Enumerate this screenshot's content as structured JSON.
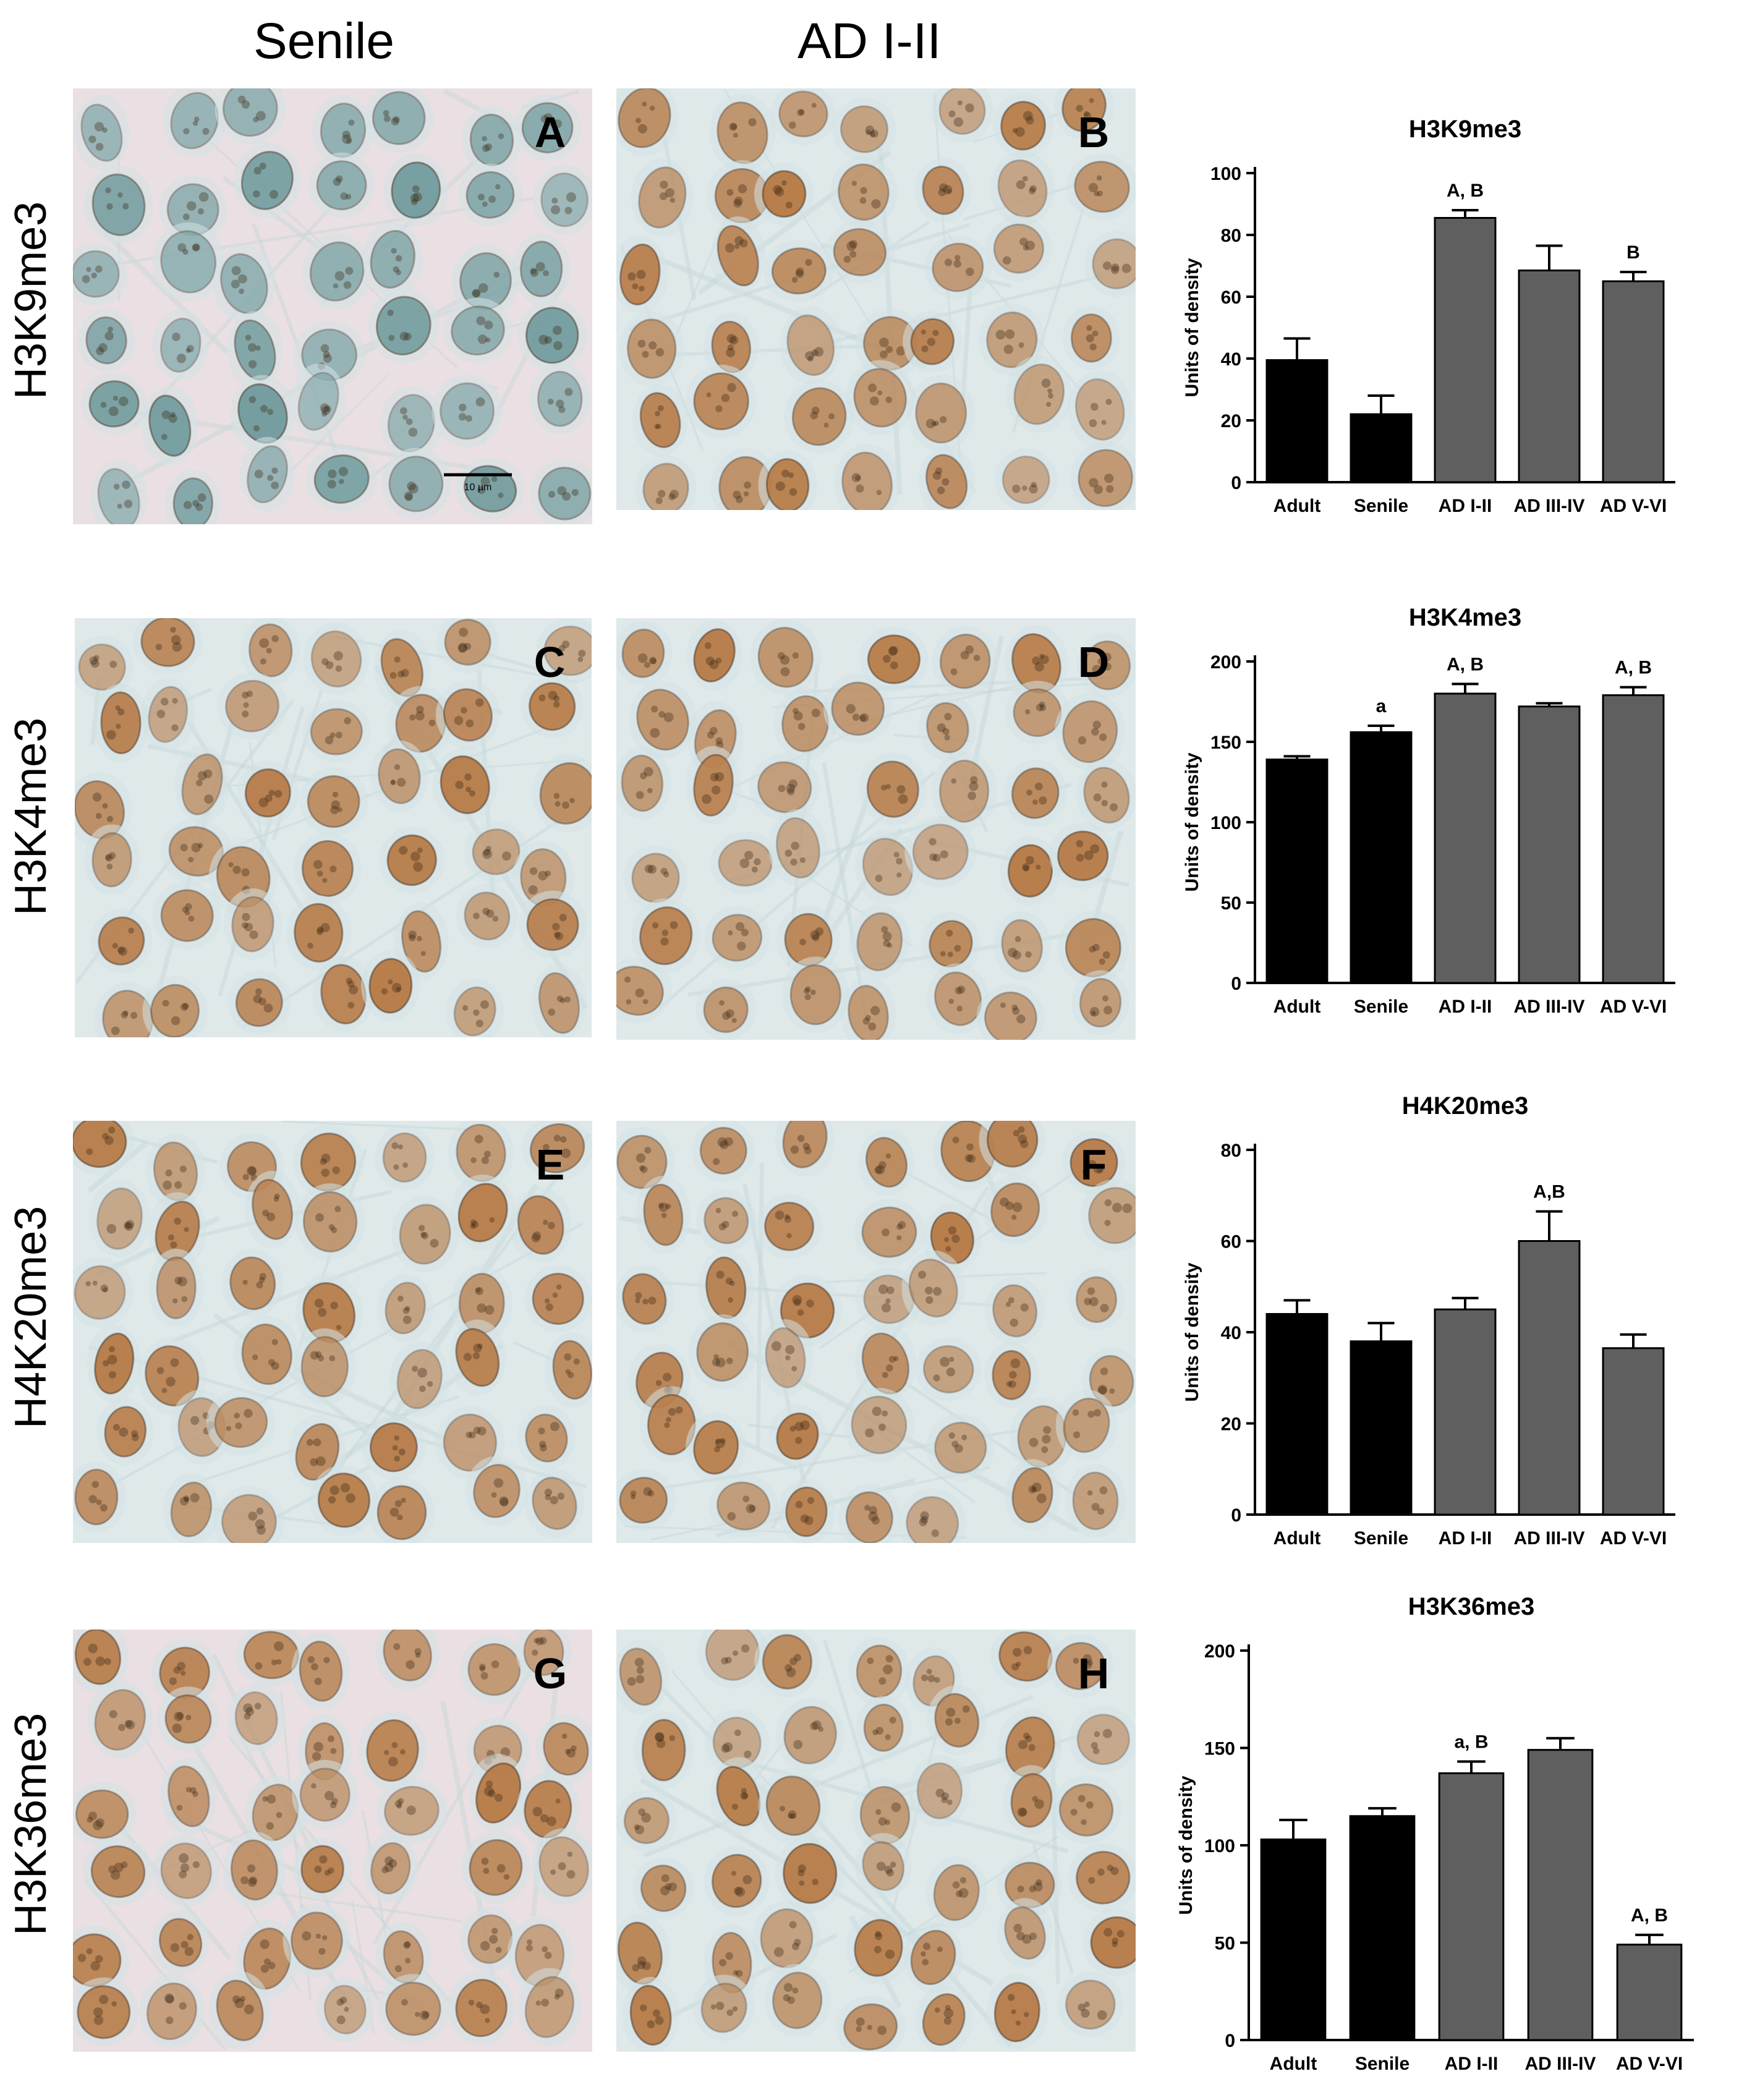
{
  "column_headers": [
    "Senile",
    "AD I-II"
  ],
  "rows": [
    {
      "label": "H3K9me3",
      "panels": [
        "A",
        "B"
      ],
      "stain": [
        "blue",
        "brown"
      ]
    },
    {
      "label": "H3K4me3",
      "panels": [
        "C",
        "D"
      ],
      "stain": [
        "brown",
        "brown"
      ]
    },
    {
      "label": "H4K20me3",
      "panels": [
        "E",
        "F"
      ],
      "stain": [
        "brown",
        "brown"
      ]
    },
    {
      "label": "H3K36me3",
      "panels": [
        "G",
        "H"
      ],
      "stain": [
        "brown",
        "brown"
      ]
    }
  ],
  "scale_bar_label": "10 µm",
  "colors": {
    "bar_dark": "#000000",
    "bar_gray": "#5f5f5f",
    "tissue_blue": "#dfe9ea",
    "tissue_pink": "#eadfe2",
    "nucleus_brown": "#b77a45",
    "nucleus_blue": "#6f9a9c"
  },
  "chart_data": [
    {
      "type": "bar",
      "title": "H3K9me3",
      "ylabel": "Units of density",
      "categories": [
        "Adult",
        "Senile",
        "AD I-II",
        "AD III-IV",
        "AD V-VI"
      ],
      "values": [
        39.5,
        22,
        85.5,
        68.5,
        65
      ],
      "errors": [
        7,
        6,
        2.5,
        8,
        3
      ],
      "annotations": [
        "",
        "",
        "A, B",
        "",
        "B"
      ],
      "ylim": [
        0,
        100
      ],
      "yticks": [
        0,
        20,
        40,
        60,
        80,
        100
      ]
    },
    {
      "type": "bar",
      "title": "H3K4me3",
      "ylabel": "Units of density",
      "categories": [
        "Adult",
        "Senile",
        "AD I-II",
        "AD III-IV",
        "AD V-VI"
      ],
      "values": [
        139,
        156,
        180,
        172,
        179
      ],
      "errors": [
        2,
        4,
        6,
        2,
        5
      ],
      "annotations": [
        "",
        "a",
        "A, B",
        "",
        "A, B"
      ],
      "ylim": [
        0,
        200
      ],
      "yticks": [
        0,
        50,
        100,
        150,
        200
      ]
    },
    {
      "type": "bar",
      "title": "H4K20me3",
      "ylabel": "Units of density",
      "categories": [
        "Adult",
        "Senile",
        "AD I-II",
        "AD III-IV",
        "AD V-VI"
      ],
      "values": [
        44,
        38,
        45,
        60,
        36.5
      ],
      "errors": [
        3,
        4,
        2.5,
        6.5,
        3
      ],
      "annotations": [
        "",
        "",
        "",
        "A,B",
        ""
      ],
      "ylim": [
        0,
        80
      ],
      "yticks": [
        0,
        20,
        40,
        60,
        80
      ]
    },
    {
      "type": "bar",
      "title": "H3K36me3",
      "ylabel": "Units of density",
      "categories": [
        "Adult",
        "Senile",
        "AD I-II",
        "AD III-IV",
        "AD V-VI"
      ],
      "values": [
        103,
        115,
        137,
        149,
        49
      ],
      "errors": [
        10,
        4,
        6,
        6,
        5
      ],
      "annotations": [
        "",
        "",
        "a, B",
        "",
        "A, B"
      ],
      "ylim": [
        0,
        200
      ],
      "yticks": [
        0,
        50,
        100,
        150,
        200
      ]
    }
  ]
}
